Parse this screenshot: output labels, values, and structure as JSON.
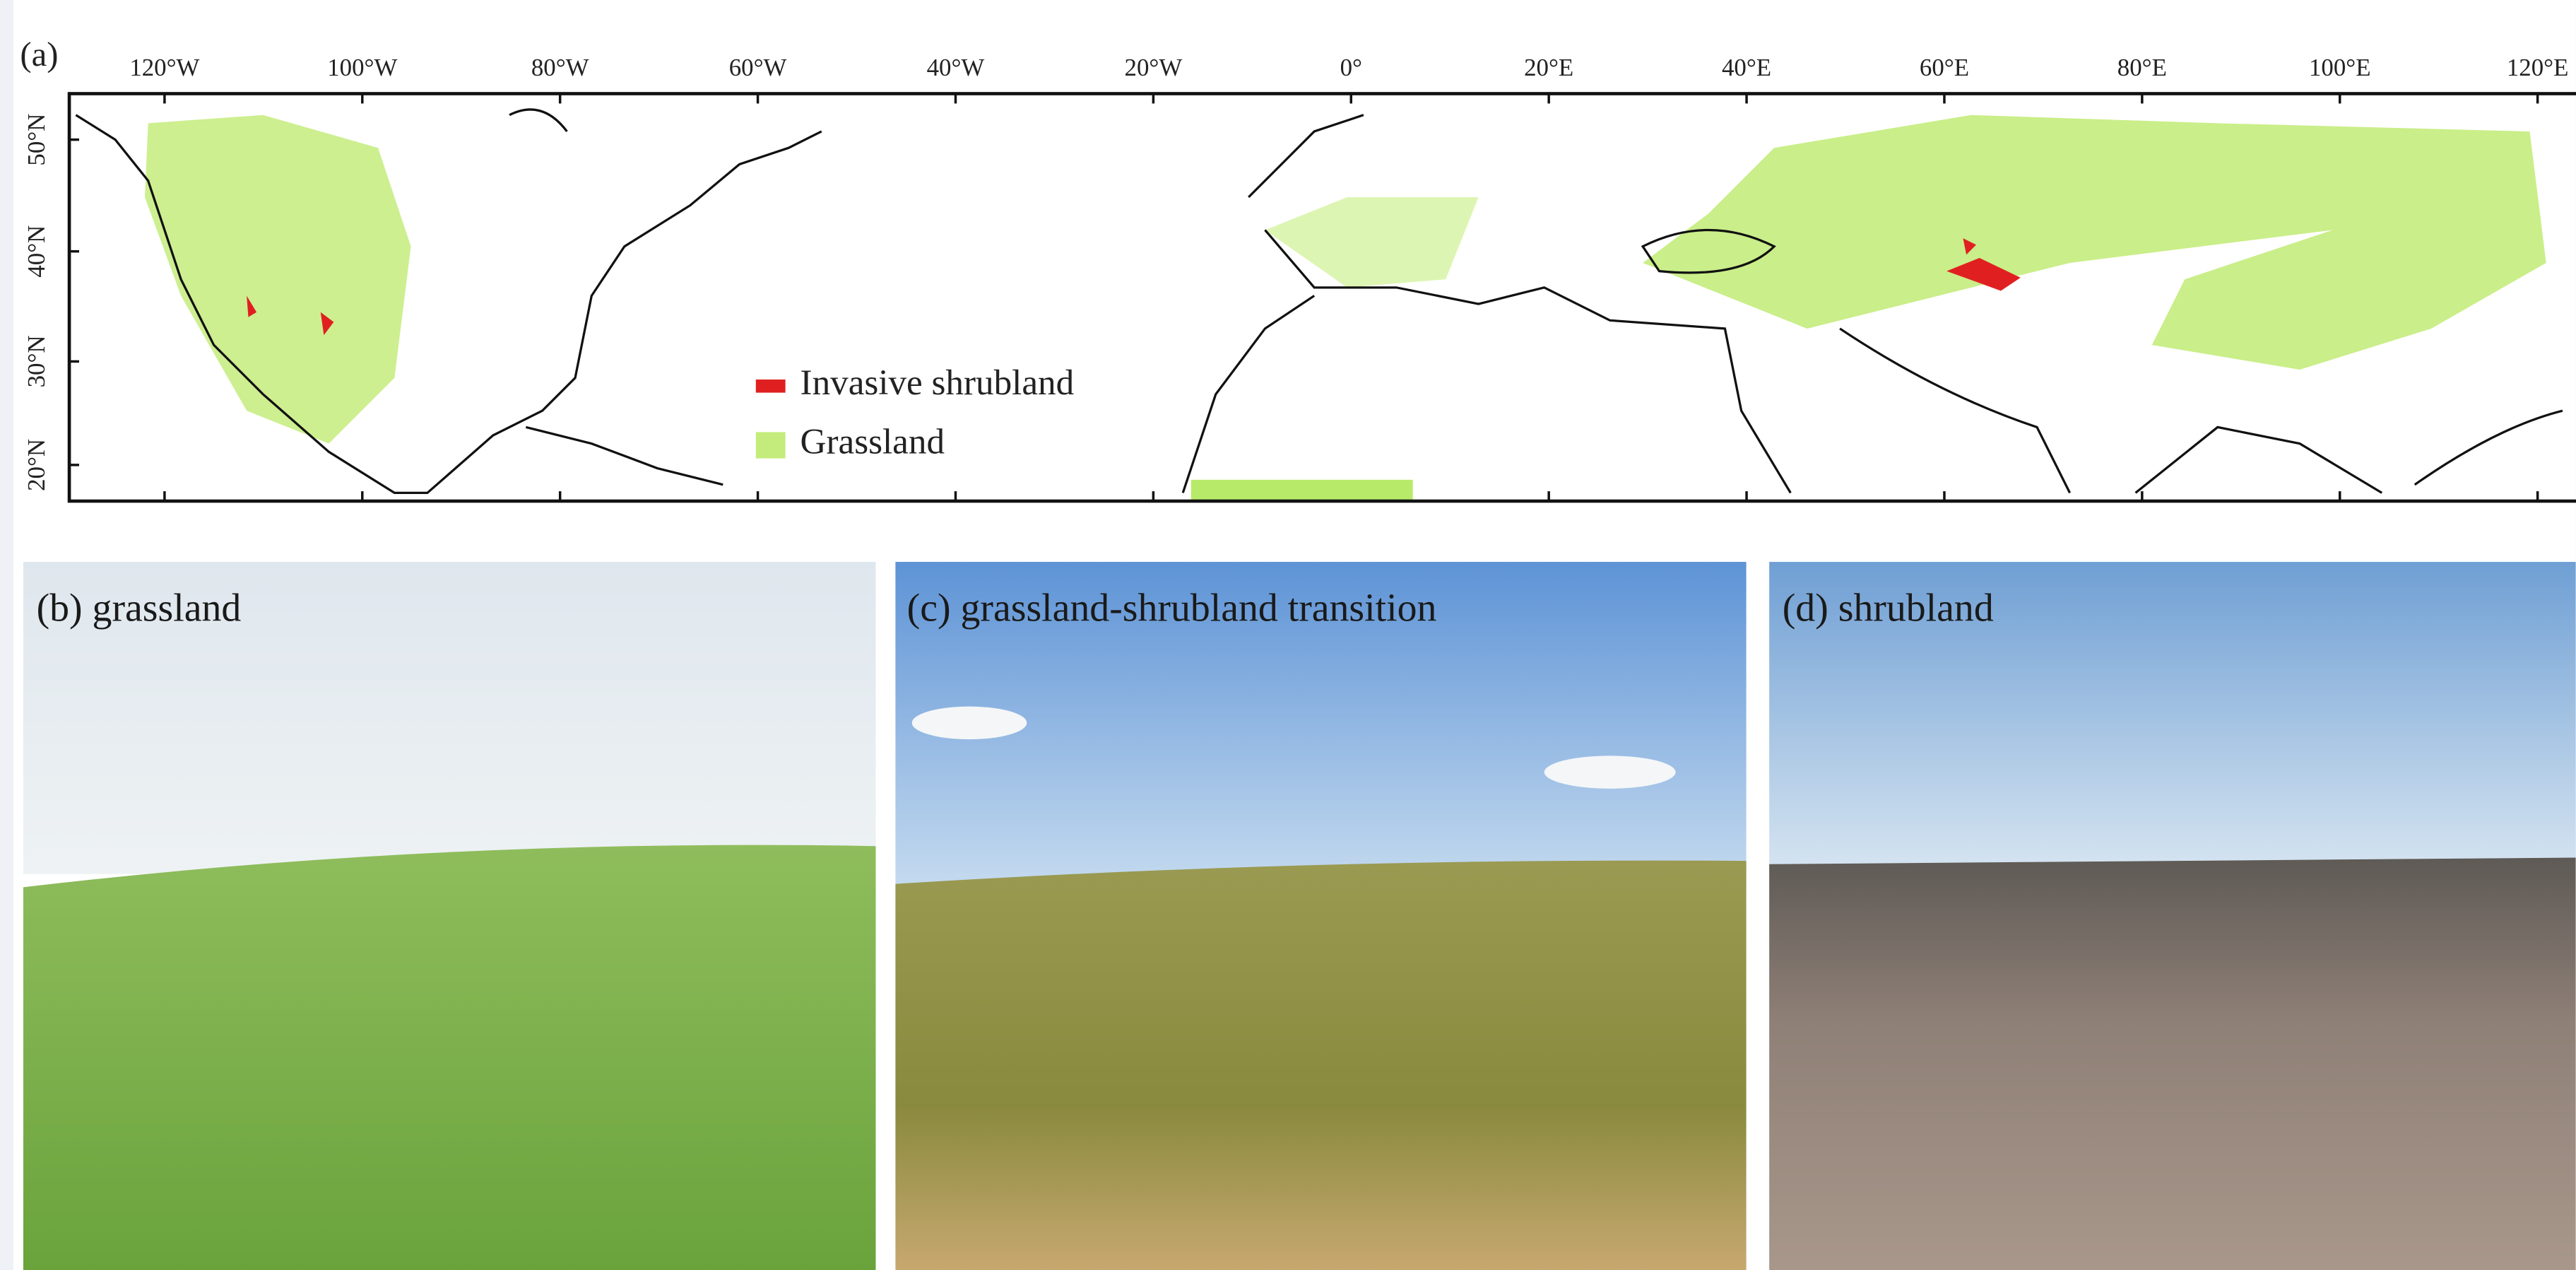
{
  "map": {
    "label": "(a)",
    "lon_labels": [
      "120°W",
      "100°W",
      "80°W",
      "60°W",
      "40°W",
      "20°W",
      "0°",
      "20°E",
      "40°E",
      "60°E",
      "80°E",
      "100°E",
      "120°E"
    ],
    "lat_labels": [
      "50°N",
      "40°N",
      "30°N",
      "20°N"
    ],
    "legend": [
      {
        "label": "Invasive shrubland",
        "color": "#e02020"
      },
      {
        "label": "Grassland",
        "color": "#c4ec7c"
      }
    ]
  },
  "photos": [
    {
      "caption": "(b) grassland"
    },
    {
      "caption": "(c) grassland-shrubland transition"
    },
    {
      "caption": "(d) shrubland"
    }
  ]
}
